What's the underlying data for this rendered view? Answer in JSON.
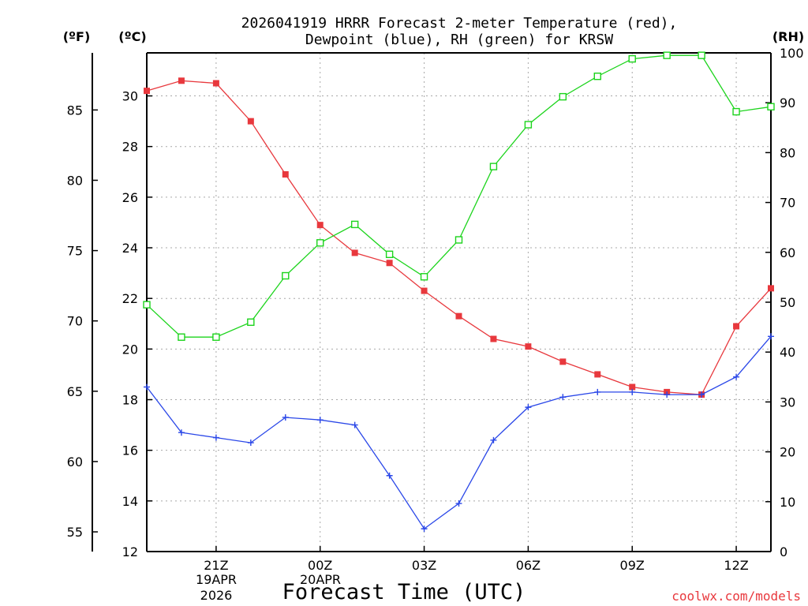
{
  "chart_data": {
    "type": "line",
    "title_line1": "2026041919 HRRR Forecast 2-meter Temperature (red),",
    "title_line2": "Dewpoint (blue), RH (green) for KRSW",
    "xlabel": "Forecast Time (UTC)",
    "unit_f": "(ºF)",
    "unit_c": "(ºC)",
    "unit_rh": "(RH)",
    "credit": "coolwx.com/models",
    "date_labels": [
      "19APR",
      "2026",
      "20APR"
    ],
    "x_hours": [
      0,
      1,
      2,
      3,
      4,
      5,
      6,
      7,
      8,
      9,
      10,
      11,
      12,
      13,
      14,
      15,
      16,
      17,
      18
    ],
    "x_tick_labels": [
      {
        "hour": 2,
        "label": "21Z"
      },
      {
        "hour": 5,
        "label": "00Z"
      },
      {
        "hour": 8,
        "label": "03Z"
      },
      {
        "hour": 11,
        "label": "06Z"
      },
      {
        "hour": 14,
        "label": "09Z"
      },
      {
        "hour": 17,
        "label": "12Z"
      }
    ],
    "xlim": [
      0,
      18
    ],
    "c_ylim": [
      12,
      31.7
    ],
    "c_ticks": [
      12,
      14,
      16,
      18,
      20,
      22,
      24,
      26,
      28,
      30
    ],
    "f_ticks": [
      55,
      60,
      65,
      70,
      75,
      80,
      85
    ],
    "rh_ylim": [
      0,
      100
    ],
    "rh_ticks": [
      0,
      10,
      20,
      30,
      40,
      50,
      60,
      70,
      80,
      90,
      100
    ],
    "series": [
      {
        "name": "Temperature",
        "unit": "C",
        "color": "#e8383d",
        "marker": "filled-square",
        "values": [
          30.2,
          30.6,
          30.5,
          29.0,
          26.9,
          24.9,
          23.8,
          23.4,
          22.3,
          21.3,
          20.4,
          20.1,
          19.5,
          19.0,
          18.5,
          18.3,
          18.2,
          20.9,
          22.4
        ]
      },
      {
        "name": "Dewpoint",
        "unit": "C",
        "color": "#2a47e8",
        "marker": "plus",
        "values": [
          18.5,
          16.7,
          16.5,
          16.3,
          17.3,
          17.2,
          17.0,
          15.0,
          12.9,
          13.9,
          16.4,
          17.7,
          18.1,
          18.3,
          18.3,
          18.2,
          18.2,
          18.9,
          20.5
        ]
      },
      {
        "name": "RH",
        "unit": "%",
        "color": "#1cd41c",
        "marker": "open-square",
        "values": [
          49.5,
          43.0,
          43.0,
          46.0,
          55.3,
          61.9,
          65.6,
          59.6,
          55.1,
          62.5,
          77.2,
          85.6,
          91.2,
          95.3,
          98.8,
          99.5,
          99.5,
          88.2,
          89.2
        ]
      }
    ]
  }
}
